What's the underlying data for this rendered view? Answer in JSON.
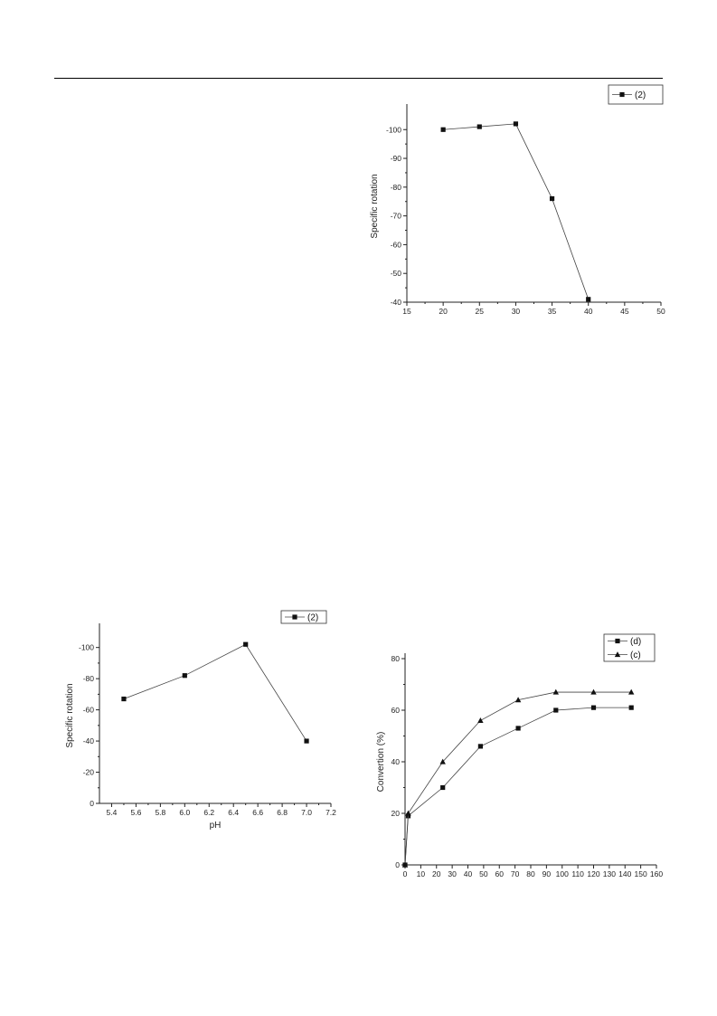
{
  "chart_data": [
    {
      "id": "chart-temp",
      "type": "line",
      "title": "",
      "xlabel": "",
      "ylabel": "Specific rotation",
      "xlim": [
        15,
        50
      ],
      "ylim": [
        -40,
        -107
      ],
      "xticks": [
        15,
        20,
        25,
        30,
        35,
        40,
        45,
        50
      ],
      "xtick_labels": [
        "15",
        "20",
        "25",
        "30",
        "35",
        "40",
        "45",
        "50"
      ],
      "yticks": [
        -40,
        -50,
        -60,
        -70,
        -80,
        -90,
        -100
      ],
      "ytick_labels": [
        "-40",
        "-50",
        "-60",
        "-70",
        "-80",
        "-90",
        "-100"
      ],
      "legend_position": "top-right",
      "grid": false,
      "series": [
        {
          "name": "(2)",
          "marker": "square",
          "x": [
            20,
            25,
            30,
            35,
            40
          ],
          "y": [
            -100,
            -101,
            -102,
            -76,
            -41
          ]
        }
      ]
    },
    {
      "id": "chart-ph",
      "type": "line",
      "title": "",
      "xlabel": "pH",
      "ylabel": "Specific rotation",
      "xlim": [
        5.3,
        7.2
      ],
      "ylim": [
        0,
        -112
      ],
      "xticks": [
        5.4,
        5.6,
        5.8,
        6.0,
        6.2,
        6.4,
        6.6,
        6.8,
        7.0,
        7.2
      ],
      "xtick_labels": [
        "5.4",
        "5.6",
        "5.8",
        "6.0",
        "6.2",
        "6.4",
        "6.6",
        "6.8",
        "7.0",
        "7.2"
      ],
      "yticks": [
        0,
        -20,
        -40,
        -60,
        -80,
        -100
      ],
      "ytick_labels": [
        "0",
        "-20",
        "-40",
        "-60",
        "-80",
        "-100"
      ],
      "legend_position": "top-right",
      "grid": false,
      "series": [
        {
          "name": "(2)",
          "marker": "square",
          "x": [
            5.5,
            6.0,
            6.5,
            7.0
          ],
          "y": [
            -67,
            -82,
            -102,
            -40
          ]
        }
      ]
    },
    {
      "id": "chart-time",
      "type": "line",
      "title": "",
      "xlabel": "",
      "ylabel": "Convertion (%)",
      "xlim": [
        0,
        160
      ],
      "ylim": [
        0,
        80
      ],
      "xticks": [
        0,
        10,
        20,
        30,
        40,
        50,
        60,
        70,
        80,
        90,
        100,
        110,
        120,
        130,
        140,
        150,
        160
      ],
      "xtick_labels": [
        "0",
        "10",
        "20",
        "30",
        "40",
        "50",
        "60",
        "70",
        "80",
        "90",
        "100",
        "110",
        "120",
        "130",
        "140",
        "150",
        "160"
      ],
      "yticks": [
        0,
        20,
        40,
        60,
        80
      ],
      "ytick_labels": [
        "0",
        "20",
        "40",
        "60",
        "80"
      ],
      "legend_position": "top-right",
      "grid": false,
      "series": [
        {
          "name": "(d)",
          "marker": "square",
          "x": [
            0,
            2,
            24,
            48,
            72,
            96,
            120,
            144
          ],
          "y": [
            0,
            19,
            30,
            46,
            53,
            60,
            61,
            61
          ]
        },
        {
          "name": "(c)",
          "marker": "triangle",
          "x": [
            0,
            2,
            24,
            48,
            72,
            96,
            120,
            144
          ],
          "y": [
            0,
            20,
            40,
            56,
            64,
            67,
            67,
            67
          ]
        }
      ]
    }
  ]
}
